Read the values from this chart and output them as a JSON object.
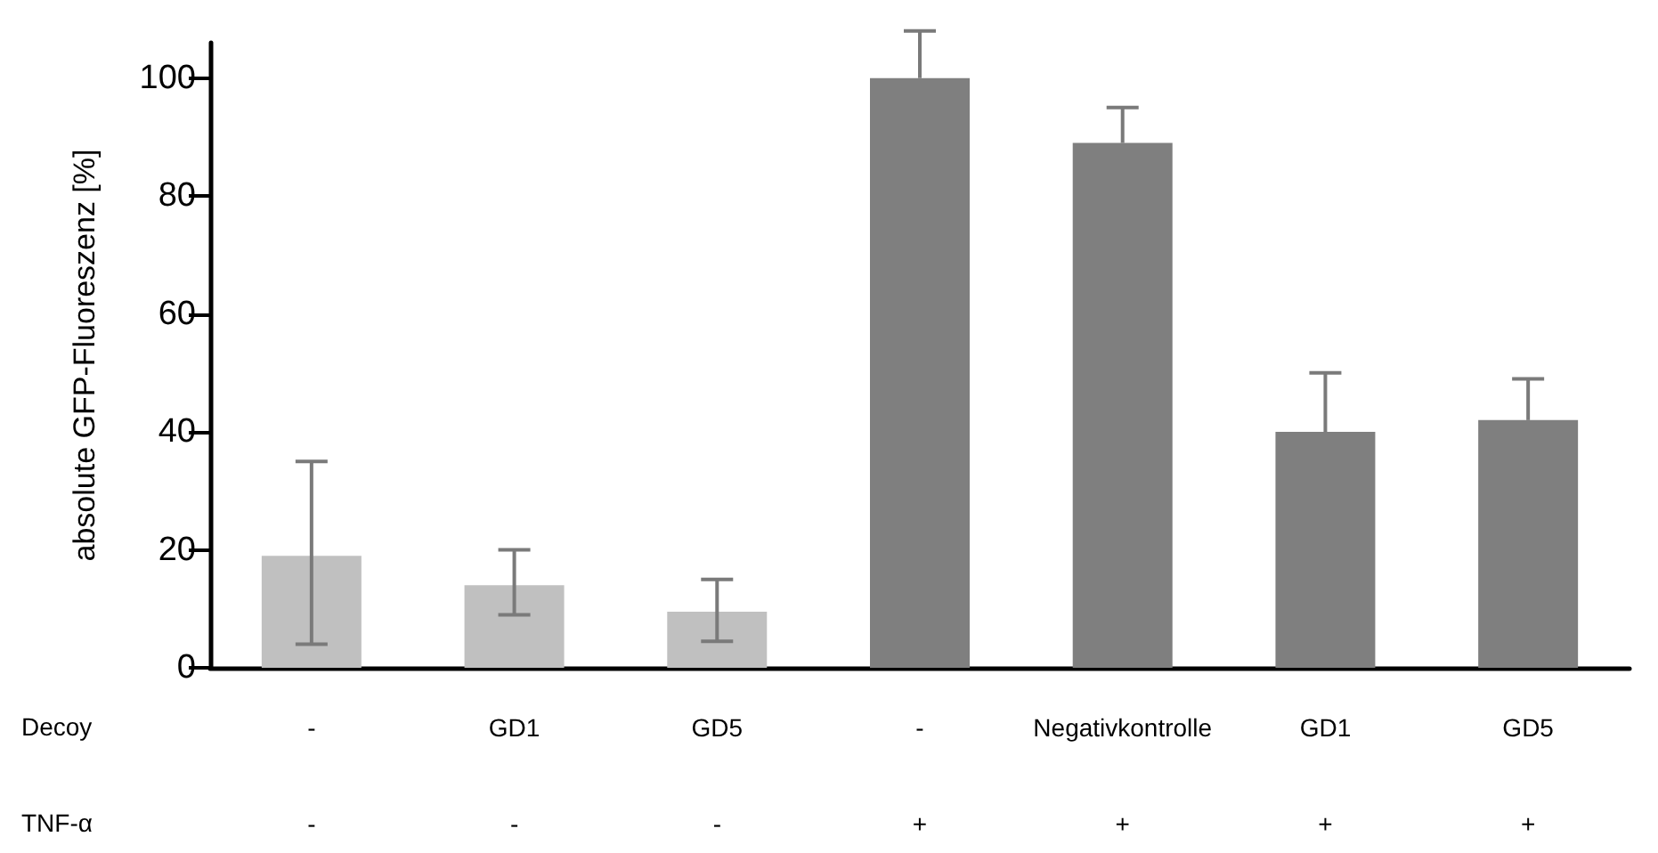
{
  "chart_data": {
    "type": "bar",
    "ylabel": "absolute GFP-Fluoreszenz [%]",
    "categories": [
      "-\n\n-",
      "GD1\n\n-",
      "GD5\n\n-",
      "-\n\n+",
      "Negativkontrolle\n\n+",
      "GD1\n\n+",
      "GD5\n\n+"
    ],
    "values": [
      19,
      14,
      9.5,
      100,
      89,
      40,
      42
    ],
    "colors": [
      "#c0c0c0",
      "#c0c0c0",
      "#c0c0c0",
      "#7f7f7f",
      "#7f7f7f",
      "#7f7f7f",
      "#7f7f7f"
    ],
    "errors": [
      [
        4,
        35
      ],
      [
        9,
        20
      ],
      [
        4.5,
        15
      ],
      [
        100,
        108
      ],
      [
        89,
        95
      ],
      [
        40,
        50
      ],
      [
        42,
        49
      ]
    ],
    "ylim": [
      0,
      106
    ],
    "yticks": [
      0,
      20,
      40,
      60,
      80,
      100
    ],
    "grid": false,
    "annotations": [
      "Decoy",
      "TNF-α"
    ]
  }
}
